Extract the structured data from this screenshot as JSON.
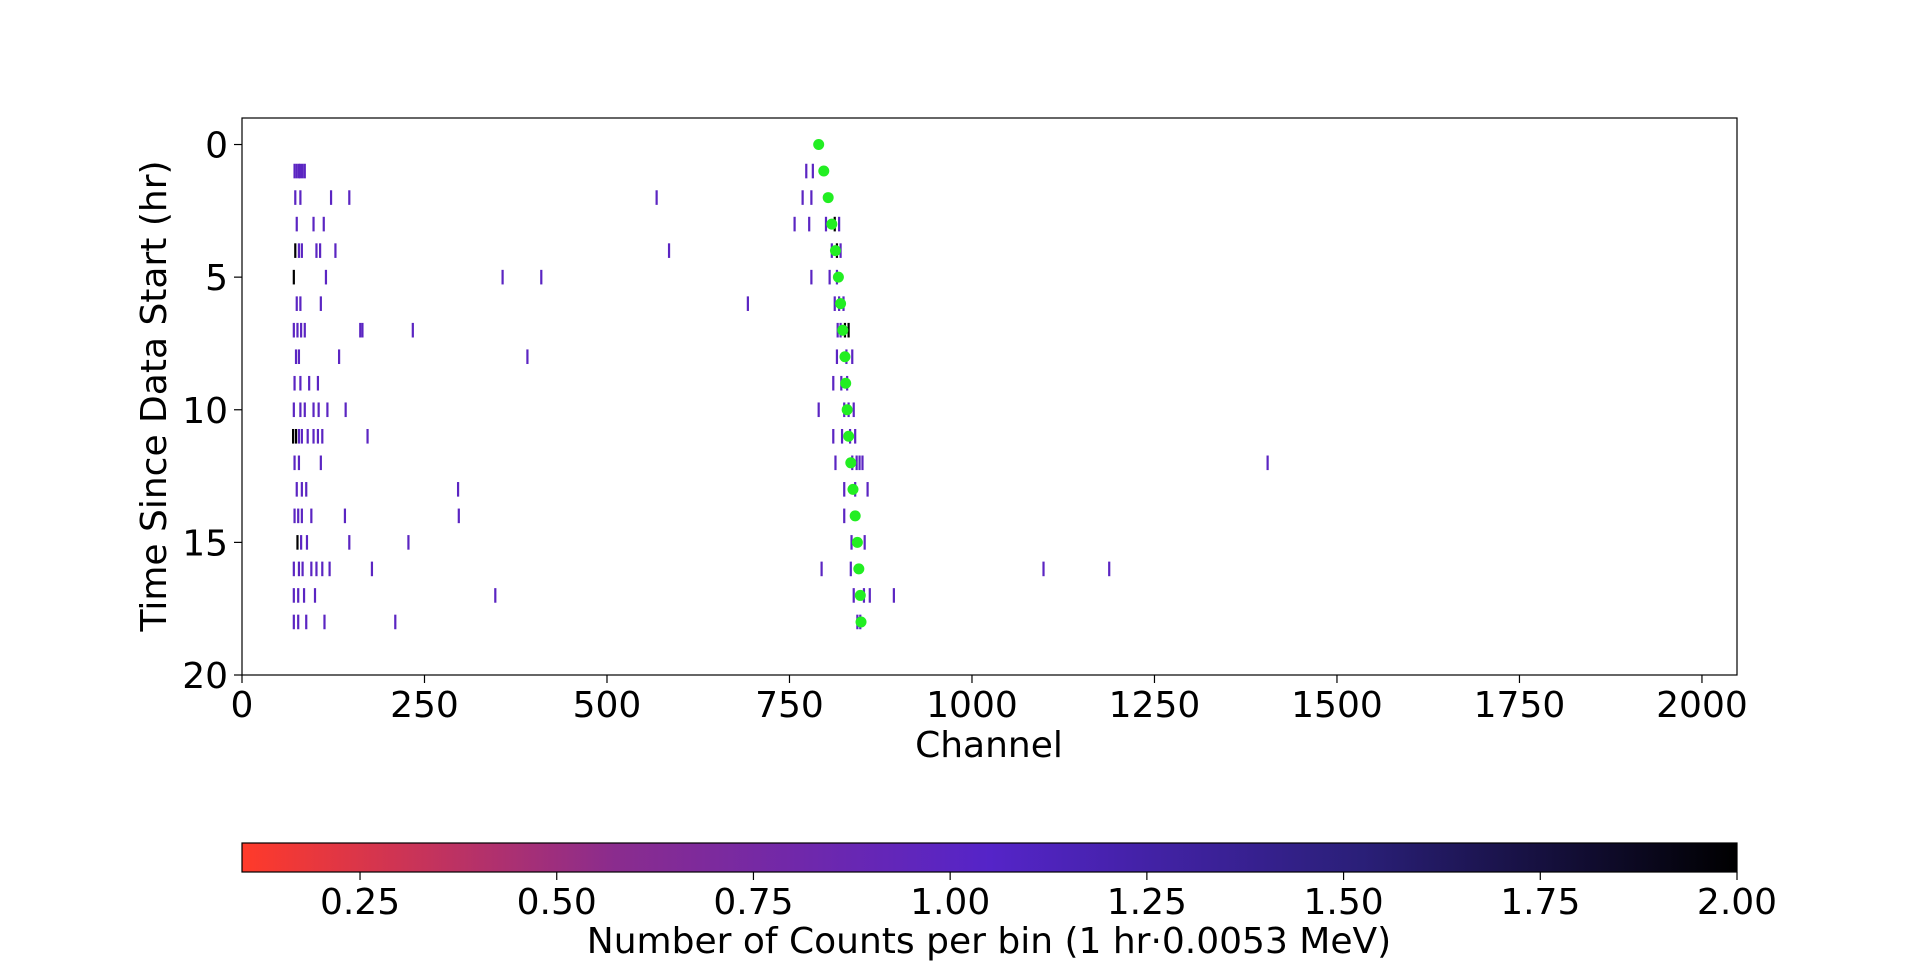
{
  "chart_data": {
    "type": "heatmap",
    "xlabel": "Channel",
    "ylabel": "Time Since Data Start (hr)",
    "xlim": [
      0,
      2048
    ],
    "ylim": [
      20,
      -1
    ],
    "y_inverted": true,
    "x_ticks": [
      0,
      250,
      500,
      750,
      1000,
      1250,
      1500,
      1750,
      2000
    ],
    "x_tick_labels": [
      "0",
      "250",
      "500",
      "750",
      "1000",
      "1250",
      "1500",
      "1750",
      "2000"
    ],
    "y_ticks": [
      0,
      5,
      10,
      15,
      20
    ],
    "y_tick_labels": [
      "0",
      "5",
      "10",
      "15",
      "20"
    ],
    "grid": false,
    "colorbar": {
      "label": "Number of Counts per bin (1 hr·0.0053 MeV)",
      "orientation": "horizontal",
      "range": [
        0.1,
        2.0
      ],
      "ticks": [
        0.25,
        0.5,
        0.75,
        1.0,
        1.25,
        1.5,
        1.75,
        2.0
      ],
      "tick_labels": [
        "0.25",
        "0.50",
        "0.75",
        "1.00",
        "1.25",
        "1.50",
        "1.75",
        "2.00"
      ],
      "colors": [
        "#ff3a2a",
        "#8a2c8e",
        "#5524c8",
        "#2a1f78",
        "#000000"
      ]
    },
    "marker_color": "#22ee22",
    "peak_markers": [
      {
        "hour": 0,
        "channel": 790
      },
      {
        "hour": 1,
        "channel": 797
      },
      {
        "hour": 2,
        "channel": 803
      },
      {
        "hour": 3,
        "channel": 808
      },
      {
        "hour": 4,
        "channel": 813
      },
      {
        "hour": 5,
        "channel": 817
      },
      {
        "hour": 6,
        "channel": 820
      },
      {
        "hour": 7,
        "channel": 823
      },
      {
        "hour": 8,
        "channel": 826
      },
      {
        "hour": 9,
        "channel": 827
      },
      {
        "hour": 10,
        "channel": 829
      },
      {
        "hour": 11,
        "channel": 831
      },
      {
        "hour": 12,
        "channel": 834
      },
      {
        "hour": 13,
        "channel": 837
      },
      {
        "hour": 14,
        "channel": 840
      },
      {
        "hour": 15,
        "channel": 843
      },
      {
        "hour": 16,
        "channel": 845
      },
      {
        "hour": 17,
        "channel": 847
      },
      {
        "hour": 18,
        "channel": 848
      }
    ],
    "counts": [
      {
        "hour": 1,
        "channels": [
          72,
          75,
          78,
          80,
          83,
          86
        ],
        "values": [
          1,
          1,
          1,
          1,
          1,
          1
        ]
      },
      {
        "hour": 1,
        "channels": [
          773,
          782
        ],
        "values": [
          1,
          1
        ]
      },
      {
        "hour": 2,
        "channels": [
          73,
          80,
          122,
          147,
          568,
          768,
          780
        ],
        "values": [
          1,
          1,
          1,
          1,
          1,
          1,
          1
        ]
      },
      {
        "hour": 3,
        "channels": [
          75,
          98,
          112,
          757,
          777,
          800,
          812,
          818
        ],
        "values": [
          1,
          1,
          1,
          1,
          1,
          1,
          2,
          1
        ]
      },
      {
        "hour": 4,
        "channels": [
          73,
          78,
          82,
          102,
          107,
          128,
          585,
          808,
          815,
          820
        ],
        "values": [
          2,
          1,
          1,
          1,
          1,
          1,
          1,
          1,
          2,
          1
        ]
      },
      {
        "hour": 5,
        "channels": [
          71,
          115,
          357,
          410,
          780,
          805,
          815
        ],
        "values": [
          2,
          1,
          1,
          1,
          1,
          1,
          1
        ]
      },
      {
        "hour": 6,
        "channels": [
          75,
          80,
          108,
          693,
          812,
          818,
          824
        ],
        "values": [
          1,
          1,
          1,
          1,
          1,
          1,
          1
        ]
      },
      {
        "hour": 7,
        "channels": [
          71,
          76,
          81,
          86,
          162,
          165,
          234,
          816,
          820,
          826,
          831
        ],
        "values": [
          1,
          1,
          1,
          1,
          1,
          1,
          1,
          1,
          1,
          2,
          2
        ]
      },
      {
        "hour": 8,
        "channels": [
          74,
          78,
          133,
          391,
          815,
          828,
          836
        ],
        "values": [
          1,
          1,
          1,
          1,
          1,
          1,
          1
        ]
      },
      {
        "hour": 9,
        "channels": [
          72,
          80,
          92,
          104,
          810,
          821,
          829
        ],
        "values": [
          1,
          1,
          1,
          1,
          1,
          1,
          1
        ]
      },
      {
        "hour": 10,
        "channels": [
          71,
          80,
          86,
          98,
          105,
          117,
          142,
          790,
          825,
          831,
          838
        ],
        "values": [
          1,
          1,
          1,
          1,
          1,
          1,
          1,
          1,
          1,
          1,
          1
        ]
      },
      {
        "hour": 11,
        "channels": [
          70,
          74,
          78,
          82,
          90,
          98,
          104,
          110,
          172,
          810,
          822,
          833,
          840
        ],
        "values": [
          2,
          2,
          1,
          1,
          1,
          1,
          1,
          1,
          1,
          1,
          1,
          1,
          1
        ]
      },
      {
        "hour": 12,
        "channels": [
          72,
          78,
          108,
          813,
          836,
          842,
          846,
          850,
          1405
        ],
        "values": [
          1,
          1,
          1,
          1,
          1,
          1,
          1,
          1,
          1
        ]
      },
      {
        "hour": 13,
        "channels": [
          75,
          82,
          88,
          296,
          825,
          840,
          857
        ],
        "values": [
          1,
          1,
          1,
          1,
          1,
          1,
          1
        ]
      },
      {
        "hour": 14,
        "channels": [
          72,
          77,
          82,
          95,
          141,
          297,
          825
        ],
        "values": [
          1,
          1,
          1,
          1,
          1,
          1,
          1
        ]
      },
      {
        "hour": 15,
        "channels": [
          76,
          81,
          89,
          147,
          228,
          835,
          853
        ],
        "values": [
          2,
          1,
          1,
          1,
          1,
          1,
          1
        ]
      },
      {
        "hour": 16,
        "channels": [
          71,
          78,
          83,
          95,
          102,
          110,
          120,
          178,
          794,
          834,
          1098,
          1188
        ],
        "values": [
          1,
          1,
          1,
          1,
          1,
          1,
          1,
          1,
          1,
          1,
          1,
          1
        ]
      },
      {
        "hour": 17,
        "channels": [
          71,
          77,
          85,
          100,
          347,
          838,
          852,
          860,
          893
        ],
        "values": [
          1,
          1,
          1,
          1,
          1,
          1,
          1,
          1,
          1
        ]
      },
      {
        "hour": 18,
        "channels": [
          71,
          77,
          88,
          113,
          210,
          843,
          847
        ],
        "values": [
          1,
          1,
          1,
          1,
          1,
          1,
          1
        ]
      }
    ]
  }
}
